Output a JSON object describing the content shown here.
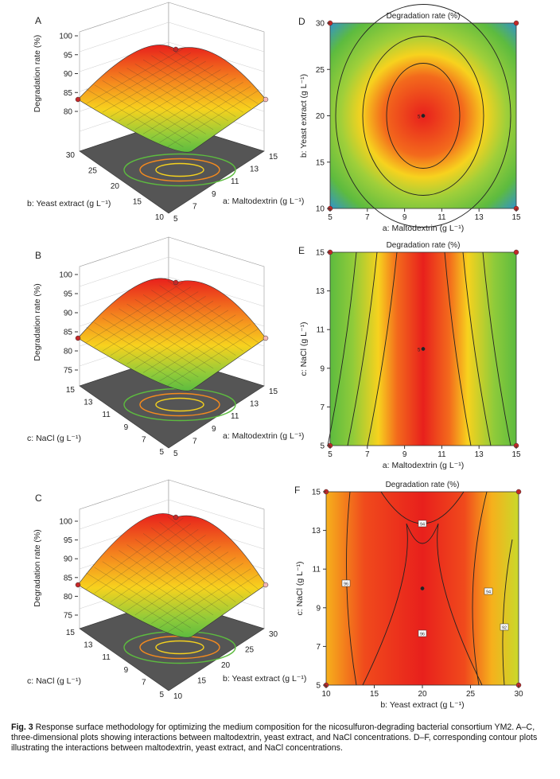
{
  "caption": {
    "label": "Fig. 3",
    "text": "Response surface methodology for optimizing the medium composition for the nicosulfuron-degrading bacterial consortium YM2. A–C, three-dimensional plots showing interactions between maltodextrin, yeast extract, and NaCl concentrations. D–F, corresponding contour plots illustrating the interactions between maltodextrin, yeast extract, and NaCl concentrations."
  },
  "colors": {
    "high": "#e8201c",
    "mid": "#f5d21e",
    "low": "#5dbb3f",
    "lowest": "#2f8fd8",
    "floor": "#555555"
  },
  "chart_data": [
    {
      "panel": "A",
      "type": "surface3d",
      "z_label": "Degradation rate (%)",
      "z_ticks": [
        "100",
        "95",
        "90",
        "85",
        "80"
      ],
      "x_label": "a: Maltodextrin (g L⁻¹)",
      "x_ticks": [
        "5",
        "7",
        "9",
        "11",
        "13",
        "15"
      ],
      "y_label": "b: Yeast extract (g L⁻¹)",
      "y_ticks": [
        "10",
        "15",
        "20",
        "25",
        "30"
      ],
      "optimum": {
        "x": 10,
        "y": 20,
        "z": 97
      }
    },
    {
      "panel": "B",
      "type": "surface3d",
      "z_label": "Degradation rate (%)",
      "z_ticks": [
        "100",
        "95",
        "90",
        "85",
        "80",
        "75"
      ],
      "x_label": "a: Maltodextrin (g L⁻¹)",
      "x_ticks": [
        "5",
        "7",
        "9",
        "11",
        "13",
        "15"
      ],
      "y_label": "c: NaCl (g L⁻¹)",
      "y_ticks": [
        "5",
        "7",
        "9",
        "11",
        "13",
        "15"
      ],
      "optimum": {
        "x": 10,
        "y": 10,
        "z": 97
      }
    },
    {
      "panel": "C",
      "type": "surface3d",
      "z_label": "Degradation rate (%)",
      "z_ticks": [
        "100",
        "95",
        "90",
        "85",
        "80",
        "75"
      ],
      "x_label": "b: Yeast extract (g L⁻¹)",
      "x_ticks": [
        "10",
        "15",
        "20",
        "25",
        "30"
      ],
      "y_label": "c: NaCl (g L⁻¹)",
      "y_ticks": [
        "5",
        "7",
        "9",
        "11",
        "13",
        "15"
      ],
      "optimum": {
        "x": 20,
        "y": 10,
        "z": 97
      }
    },
    {
      "panel": "D",
      "type": "contour",
      "title": "Degradation rate (%)",
      "xlabel": "a: Maltodextrin (g L⁻¹)",
      "ylabel": "b: Yeast extract (g L⁻¹)",
      "xlim": [
        5,
        15
      ],
      "ylim": [
        10,
        30
      ],
      "x_ticks": [
        5,
        7,
        9,
        11,
        13,
        15
      ],
      "y_ticks": [
        10,
        15,
        20,
        25,
        30
      ],
      "center": {
        "x": 10,
        "y": 20,
        "label": "5"
      },
      "design_points": [
        [
          5,
          10
        ],
        [
          15,
          10
        ],
        [
          5,
          30
        ],
        [
          15,
          30
        ],
        [
          10,
          20
        ]
      ]
    },
    {
      "panel": "E",
      "type": "contour",
      "title": "Degradation rate (%)",
      "xlabel": "a: Maltodextrin (g L⁻¹)",
      "ylabel": "c: NaCl (g L⁻¹)",
      "xlim": [
        5,
        15
      ],
      "ylim": [
        5,
        15
      ],
      "x_ticks": [
        5,
        7,
        9,
        11,
        13,
        15
      ],
      "y_ticks": [
        5,
        7,
        9,
        11,
        13,
        15
      ],
      "center": {
        "x": 10,
        "y": 10,
        "label": "5"
      },
      "design_points": [
        [
          5,
          5
        ],
        [
          15,
          5
        ],
        [
          5,
          15
        ],
        [
          15,
          15
        ],
        [
          10,
          10
        ]
      ]
    },
    {
      "panel": "F",
      "type": "contour",
      "title": "Degradation rate (%)",
      "xlabel": "b: Yeast extract (g L⁻¹)",
      "ylabel": "c: NaCl (g L⁻¹)",
      "xlim": [
        10,
        30
      ],
      "ylim": [
        5,
        15
      ],
      "x_ticks": [
        10,
        15,
        20,
        25,
        30
      ],
      "y_ticks": [
        5,
        7,
        9,
        11,
        13,
        15
      ],
      "center": {
        "x": 20,
        "y": 10
      },
      "contour_labels": [
        "94",
        "96",
        "96",
        "94",
        "92"
      ],
      "design_points": [
        [
          10,
          5
        ],
        [
          30,
          5
        ],
        [
          10,
          15
        ],
        [
          30,
          15
        ],
        [
          20,
          10
        ]
      ]
    }
  ]
}
